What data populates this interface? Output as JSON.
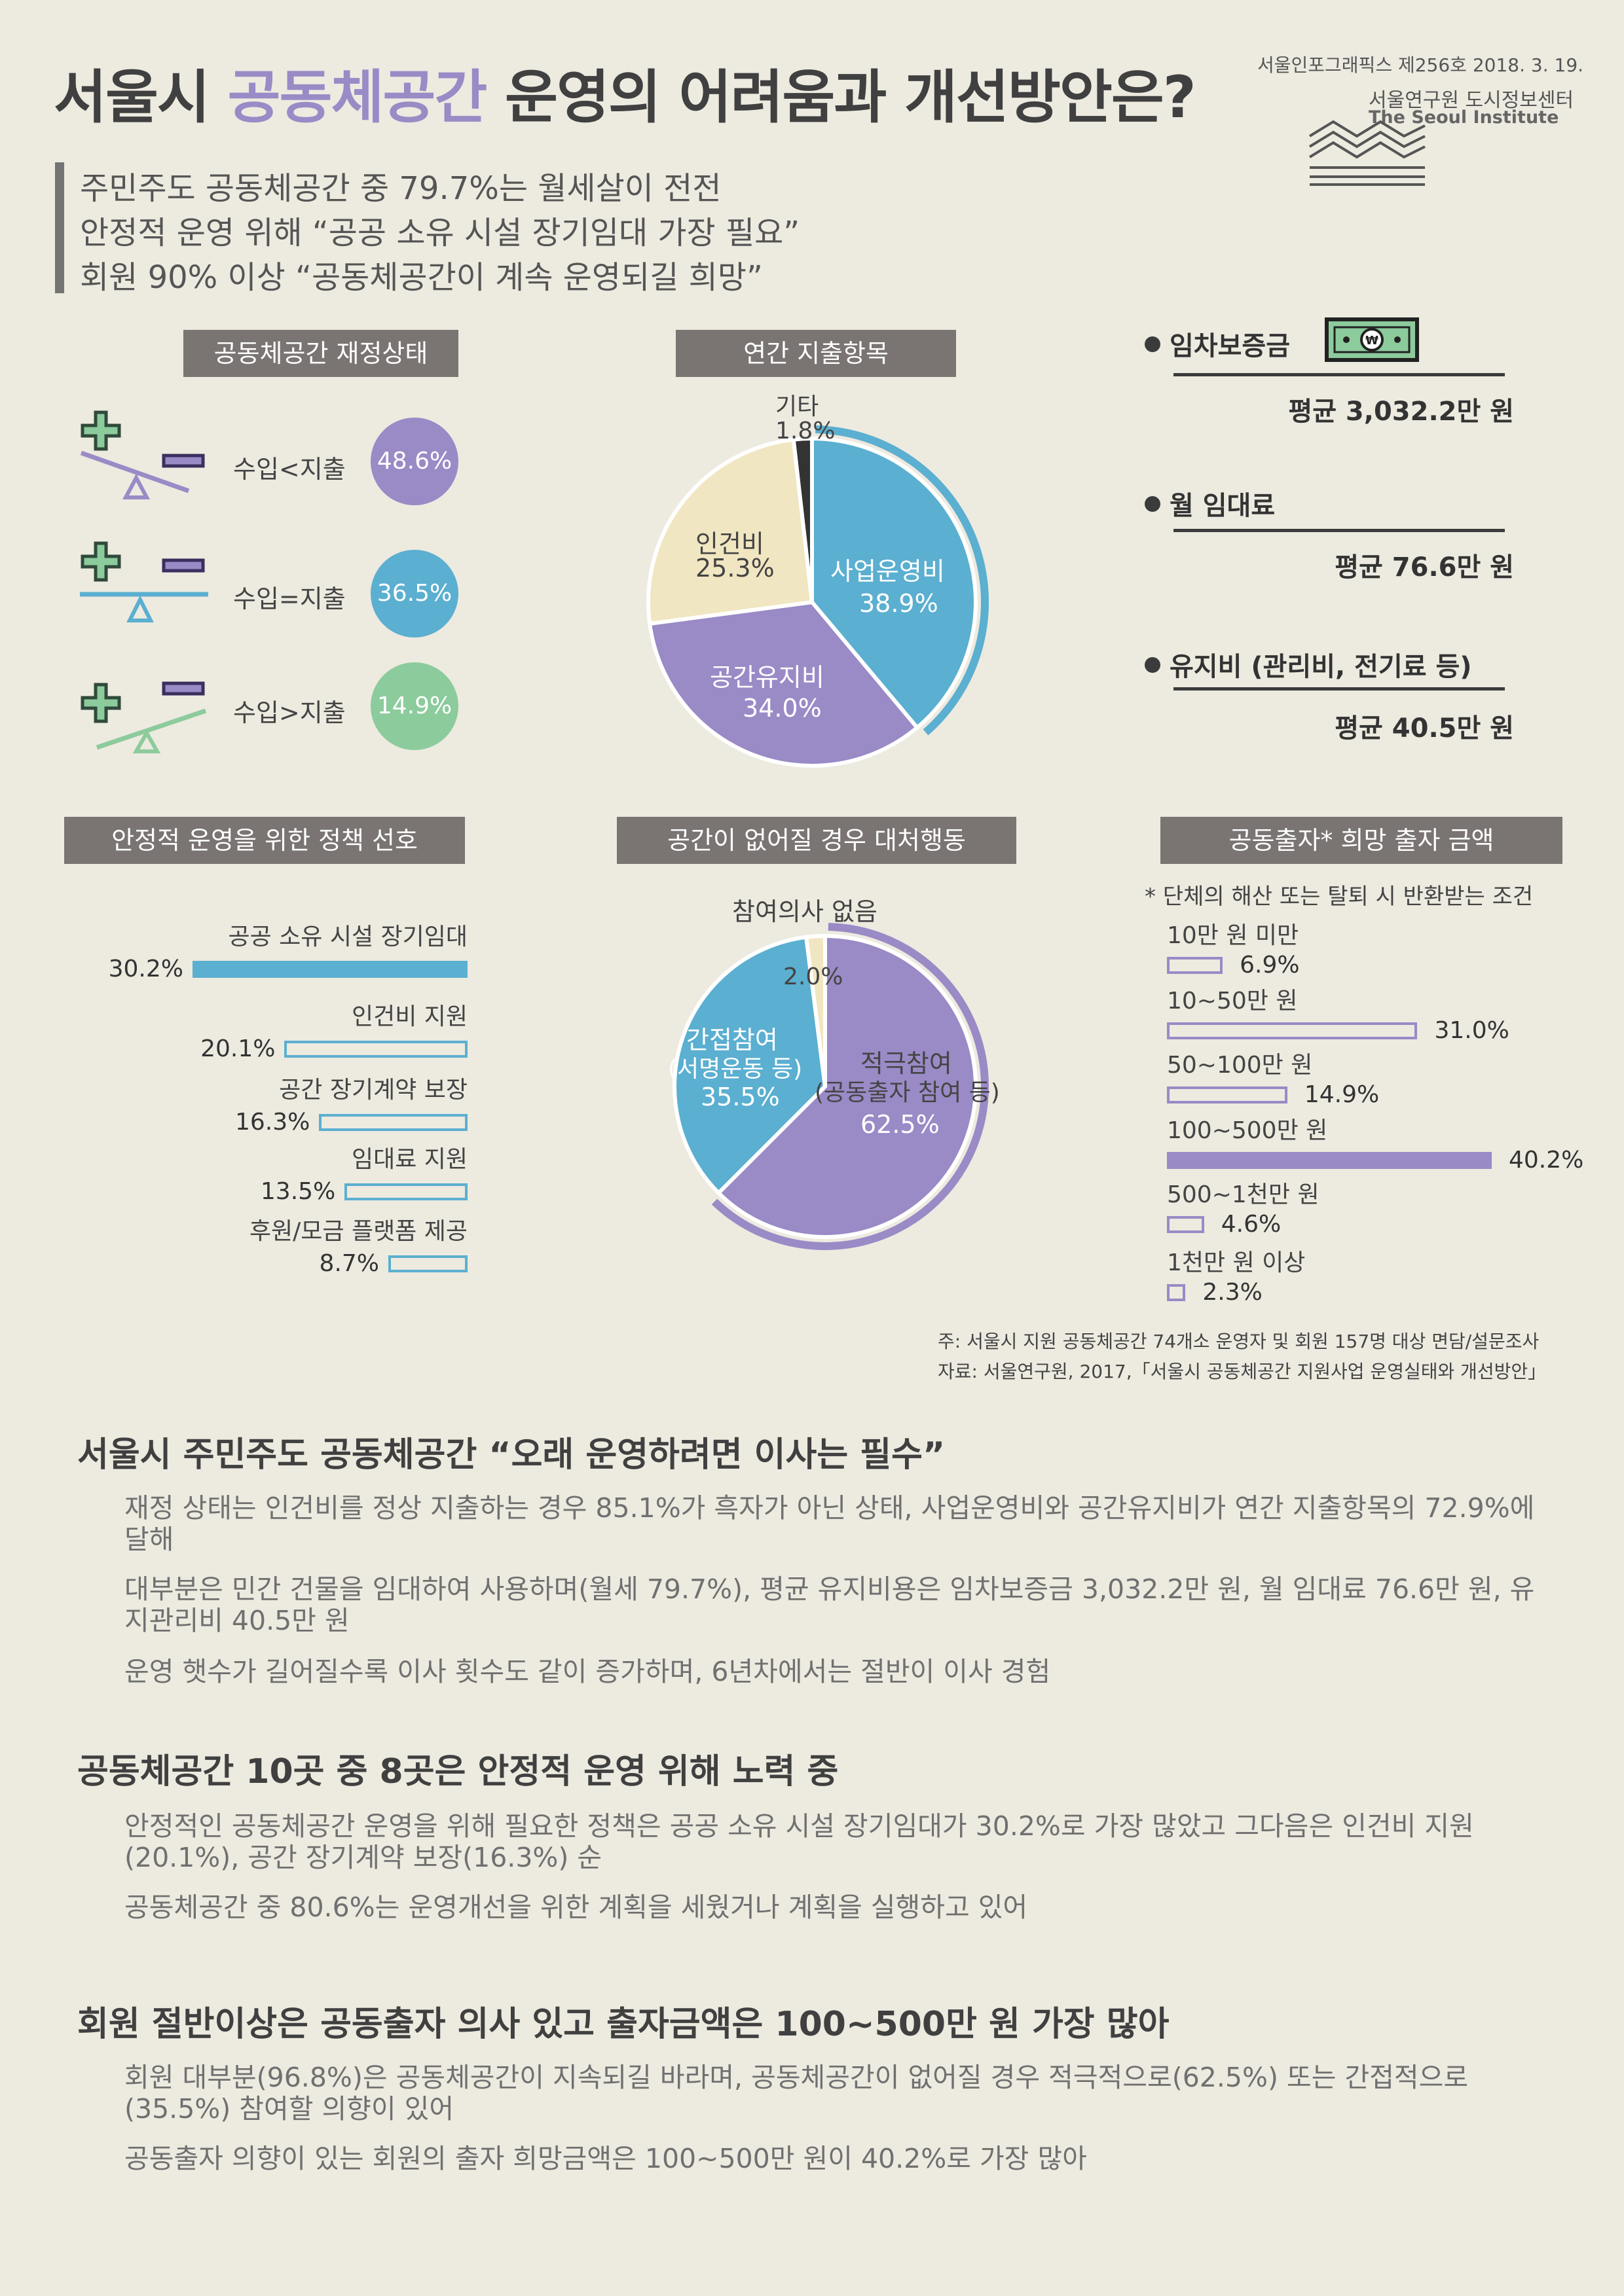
{
  "header": {
    "title_pre": "서울시 ",
    "title_accent": "공동체공간",
    "title_post": " 운영의 어려움과 개선방안은?",
    "series_info": "서울인포그래픽스 제256호 2018. 3. 19.",
    "org_name": "서울연구원 도시정보센터",
    "org_name_en": "The Seoul Institute"
  },
  "lead": [
    "주민주도 공동체공간 중 79.7%는 월세살이 전전",
    "안정적 운영 위해 “공공 소유 시설 장기임대 가장 필요”",
    "회원 90% 이상 “공동체공간이 계속 운영되길 희망”"
  ],
  "finance": {
    "title": "공동체공간 재정상태",
    "items": [
      {
        "label": "수입<지출",
        "value": "48.6%",
        "color": "#9a8ac6"
      },
      {
        "label": "수입=지출",
        "value": "36.5%",
        "color": "#5bafd0"
      },
      {
        "label": "수입>지출",
        "value": "14.9%",
        "color": "#8ccb9c"
      }
    ]
  },
  "costs": {
    "items": [
      {
        "label": "임차보증금",
        "avg": "평균 3,032.2만 원"
      },
      {
        "label": "월 임대료",
        "avg": "평균 76.6만 원"
      },
      {
        "label": "유지비 (관리비, 전기료 등)",
        "avg": "평균 40.5만 원"
      }
    ]
  },
  "chart_data": [
    {
      "type": "pie",
      "title": "연간 지출항목",
      "slices": [
        {
          "name": "사업운영비",
          "value": 38.9,
          "label": "38.9%",
          "color": "#5bafd0"
        },
        {
          "name": "공간유지비",
          "value": 34.0,
          "label": "34.0%",
          "color": "#9a8ac6"
        },
        {
          "name": "인건비",
          "value": 25.3,
          "label": "25.3%",
          "color": "#f1e6c2"
        },
        {
          "name": "기타",
          "value": 1.8,
          "label": "1.8%",
          "color": "#333333"
        }
      ]
    },
    {
      "type": "bar",
      "title": "안정적 운영을 위한 정책 선호",
      "categories": [
        "공공 소유 시설 장기임대",
        "인건비 지원",
        "공간 장기계약 보장",
        "임대료 지원",
        "후원/모금 플랫폼 제공"
      ],
      "values": [
        30.2,
        20.1,
        16.3,
        13.5,
        8.7
      ],
      "labels": [
        "30.2%",
        "20.1%",
        "16.3%",
        "13.5%",
        "8.7%"
      ],
      "color": "#5bafd0"
    },
    {
      "type": "pie",
      "title": "공간이 없어질 경우 대처행동",
      "slices": [
        {
          "name": "적극참여",
          "sub": "(공동출자 참여 등)",
          "value": 62.5,
          "label": "62.5%",
          "color": "#9a8ac6"
        },
        {
          "name": "간접참여",
          "sub": "(서명운동 등)",
          "value": 35.5,
          "label": "35.5%",
          "color": "#5bafd0"
        },
        {
          "name": "참여의사 없음",
          "value": 2.0,
          "label": "2.0%",
          "color": "#f1e6c2"
        }
      ]
    },
    {
      "type": "bar",
      "title": "공동출자* 희망 출자 금액",
      "subtitle": "* 단체의 해산 또는 탈퇴 시 반환받는 조건",
      "categories": [
        "10만 원 미만",
        "10~50만 원",
        "50~100만 원",
        "100~500만 원",
        "500~1천만 원",
        "1천만 원 이상"
      ],
      "values": [
        6.9,
        31.0,
        14.9,
        40.2,
        4.6,
        2.3
      ],
      "labels": [
        "6.9%",
        "31.0%",
        "14.9%",
        "40.2%",
        "4.6%",
        "2.3%"
      ],
      "color": "#9a8ac6"
    }
  ],
  "notes": {
    "note1": "주: 서울시 지원 공동체공간 74개소 운영자 및 회원 157명 대상  면담/설문조사",
    "note2": "자료: 서울연구원, 2017,「서울시 공동체공간 지원사업 운영실태와 개선방안」"
  },
  "sections": [
    {
      "title": "서울시 주민주도 공동체공간 “오래 운영하려면 이사는 필수”",
      "paras": [
        "재정 상태는 인건비를 정상 지출하는 경우 85.1%가 흑자가 아닌 상태, 사업운영비와 공간유지비가 연간 지출항목의 72.9%에 달해",
        "대부분은 민간 건물을 임대하여 사용하며(월세 79.7%), 평균 유지비용은 임차보증금 3,032.2만 원, 월 임대료 76.6만 원, 유지관리비 40.5만 원",
        "운영 햇수가 길어질수록 이사 횟수도 같이 증가하며, 6년차에서는 절반이 이사 경험"
      ]
    },
    {
      "title": "공동체공간 10곳 중 8곳은 안정적 운영 위해 노력 중",
      "paras": [
        "안정적인 공동체공간 운영을 위해 필요한 정책은 공공 소유 시설 장기임대가 30.2%로 가장 많았고 그다음은 인건비 지원(20.1%), 공간 장기계약 보장(16.3%) 순",
        "공동체공간 중 80.6%는 운영개선을 위한 계획을 세웠거나 계획을 실행하고 있어"
      ]
    },
    {
      "title": "회원 절반이상은 공동출자 의사 있고 출자금액은 100~500만 원 가장 많아",
      "paras": [
        "회원 대부분(96.8%)은 공동체공간이 지속되길 바라며, 공동체공간이 없어질 경우 적극적으로(62.5%) 또는 간접적으로(35.5%) 참여할 의향이 있어",
        "공동출자 의향이 있는 회원의 출자 희망금액은 100~500만 원이 40.2%로 가장 많아"
      ]
    }
  ]
}
